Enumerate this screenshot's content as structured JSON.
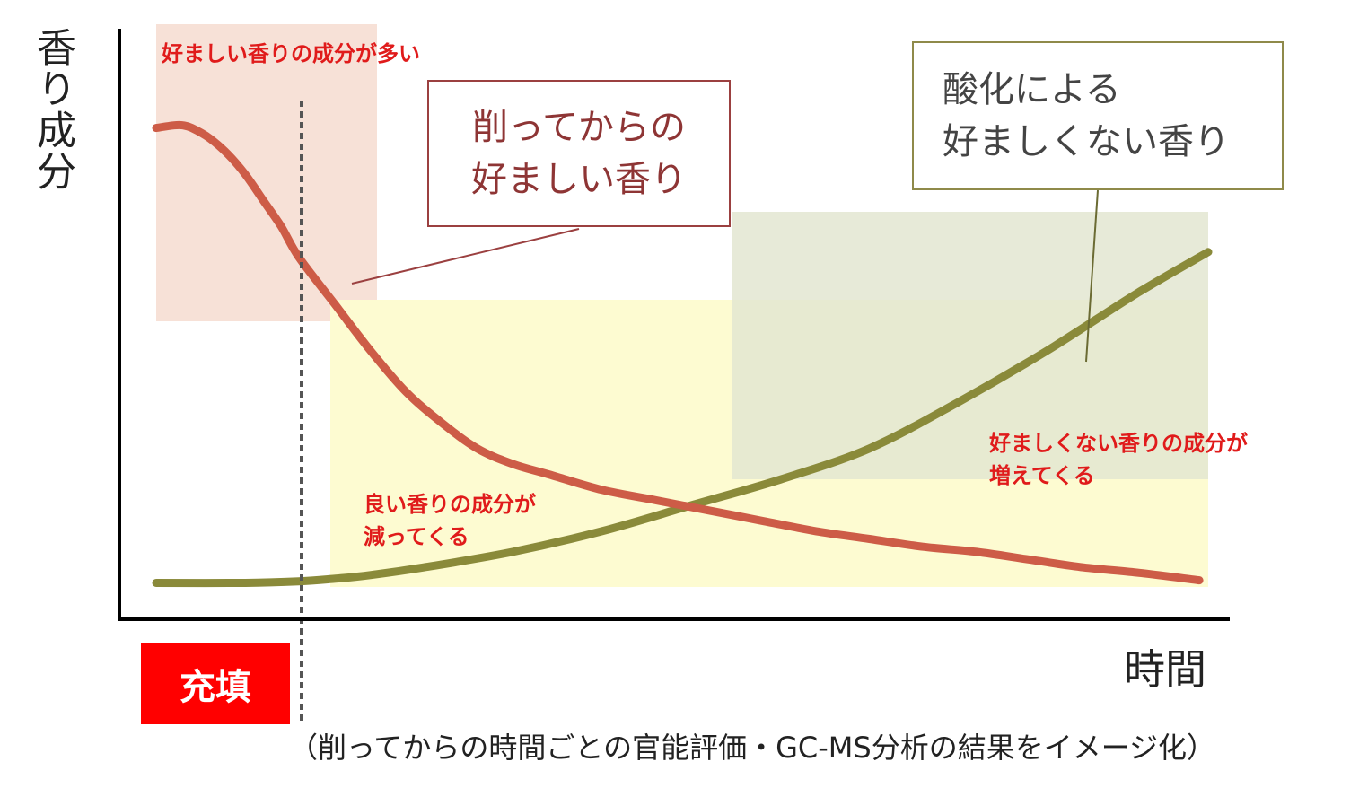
{
  "chart_data": {
    "type": "line",
    "ylabel": "香り成分",
    "xlabel": "時間",
    "series": [
      {
        "name": "削ってからの好ましい香り",
        "color": "#cd5c47",
        "x": [
          0,
          1,
          1.5,
          2,
          3,
          4,
          5,
          6,
          7,
          8,
          10,
          12,
          14,
          16,
          18,
          20,
          22,
          25,
          28,
          31,
          34,
          37,
          40,
          43,
          46,
          49,
          52,
          55,
          58.5
        ],
        "y": [
          90,
          90.5,
          90.5,
          90,
          88,
          85,
          81,
          76,
          71,
          65,
          56,
          47,
          39,
          33,
          28,
          25,
          23,
          20,
          18,
          16,
          14,
          12,
          10.5,
          9,
          8,
          6.5,
          5,
          4,
          2.5
        ]
      },
      {
        "name": "酸化による好ましくない香り",
        "color": "#8a8a3a",
        "x": [
          0,
          5,
          8,
          10,
          12,
          15,
          20,
          25,
          30,
          35,
          40,
          45,
          50,
          55,
          59
        ],
        "y": [
          2,
          2,
          2.3,
          2.8,
          3.5,
          5,
          8,
          12,
          17,
          22,
          28,
          37,
          47,
          58,
          66
        ]
      }
    ],
    "fill_marker": {
      "x": 8,
      "label": "充填"
    },
    "annotations": {
      "top_left": "好ましい香りの成分が多い",
      "decreasing": [
        "良い香りの成分が",
        "減ってくる"
      ],
      "increasing": [
        "好ましくない香りの成分が",
        "増えてくる"
      ]
    }
  },
  "callouts": {
    "good_aroma": [
      "削ってからの",
      "好ましい香り"
    ],
    "bad_aroma": [
      "酸化による",
      "好ましくない香り"
    ]
  },
  "caption": "（削ってからの時間ごとの官能評価・GC-MS分析の結果をイメージ化）",
  "colors": {
    "good_region": "#f7e1d7",
    "mid_region": "#fdfbd1",
    "bad_region": "#e8ead9",
    "fill_badge": "#ff0000",
    "annotation_red": "#e01b1b"
  }
}
